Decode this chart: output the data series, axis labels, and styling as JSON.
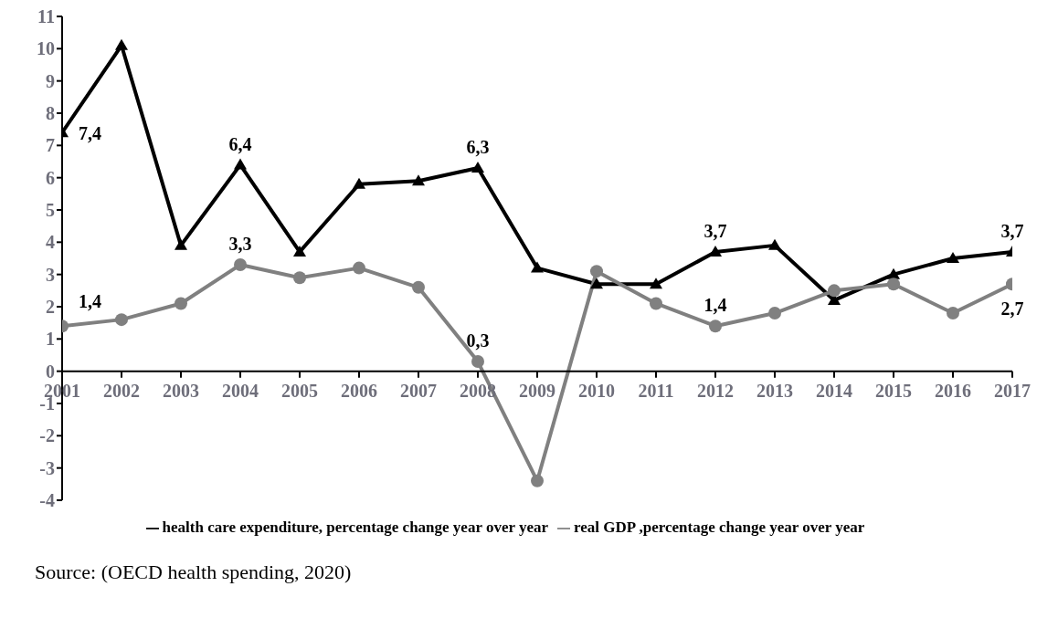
{
  "chart_data": {
    "type": "line",
    "categories": [
      "2001",
      "2002",
      "2003",
      "2004",
      "2005",
      "2006",
      "2007",
      "2008",
      "2009",
      "2010",
      "2011",
      "2012",
      "2013",
      "2014",
      "2015",
      "2016",
      "2017"
    ],
    "series": [
      {
        "name": "health care expenditure, percentage change year over year",
        "color": "#000000",
        "marker": "triangle",
        "values": [
          7.4,
          10.1,
          3.9,
          6.4,
          3.7,
          5.8,
          5.9,
          6.3,
          3.2,
          2.7,
          2.7,
          3.7,
          3.9,
          2.2,
          3.0,
          3.5,
          3.7
        ],
        "value_labels": [
          "7,4",
          null,
          null,
          "6,4",
          null,
          null,
          null,
          "6,3",
          null,
          null,
          null,
          "3,7",
          null,
          null,
          null,
          null,
          "3,7"
        ]
      },
      {
        "name": "real GDP ,percentage change year over year",
        "color": "#808080",
        "marker": "circle",
        "values": [
          1.4,
          1.6,
          2.1,
          3.3,
          2.9,
          3.2,
          2.6,
          0.3,
          -3.4,
          3.1,
          2.1,
          1.4,
          1.8,
          2.5,
          2.7,
          1.8,
          2.7
        ],
        "value_labels": [
          "1,4",
          null,
          null,
          "3,3",
          null,
          null,
          null,
          "0,3",
          null,
          null,
          null,
          "1,4",
          null,
          null,
          null,
          null,
          "2,7"
        ]
      }
    ],
    "ylim": [
      -4,
      11
    ],
    "yticks": [
      -4,
      -3,
      -2,
      -1,
      0,
      1,
      2,
      3,
      4,
      5,
      6,
      7,
      8,
      9,
      10,
      11
    ],
    "grid": false,
    "legend": "bottom",
    "line_style": "solid",
    "annotations": [
      "Source: (OECD health spending, 2020)"
    ]
  }
}
